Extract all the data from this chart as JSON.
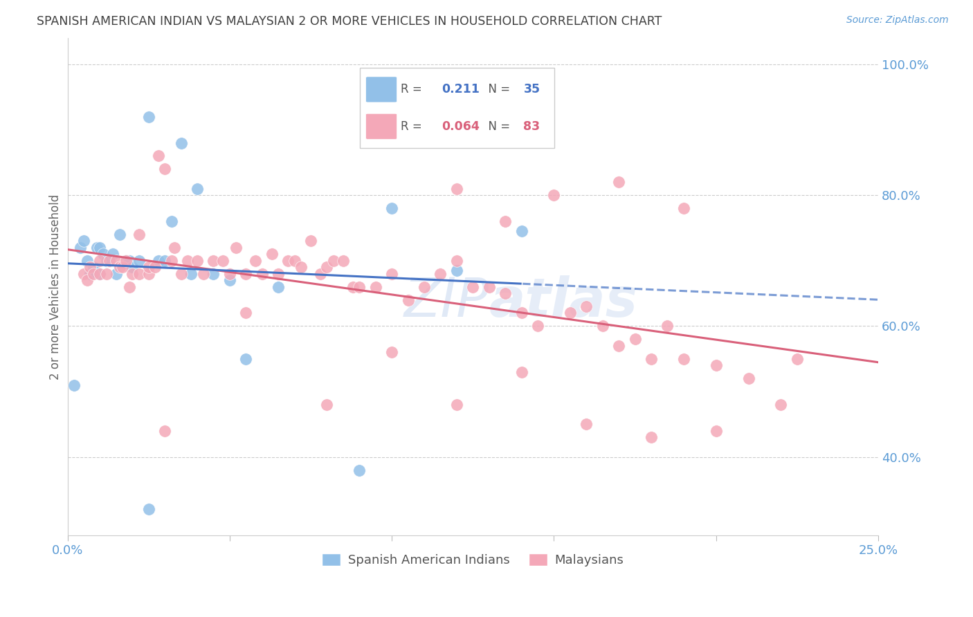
{
  "title": "SPANISH AMERICAN INDIAN VS MALAYSIAN 2 OR MORE VEHICLES IN HOUSEHOLD CORRELATION CHART",
  "source": "Source: ZipAtlas.com",
  "ylabel": "2 or more Vehicles in Household",
  "xlim": [
    0.0,
    0.25
  ],
  "ylim": [
    0.28,
    1.04
  ],
  "xticks": [
    0.0,
    0.05,
    0.1,
    0.15,
    0.2,
    0.25
  ],
  "xticklabels": [
    "0.0%",
    "",
    "",
    "",
    "",
    "25.0%"
  ],
  "yticks_right": [
    0.4,
    0.6,
    0.8,
    1.0
  ],
  "ytick_right_labels": [
    "40.0%",
    "60.0%",
    "80.0%",
    "100.0%"
  ],
  "blue_color": "#92C0E8",
  "pink_color": "#F4A8B8",
  "blue_line_color": "#4472C4",
  "pink_line_color": "#D9607A",
  "title_color": "#404040",
  "axis_color": "#5B9BD5",
  "watermark_color": "#C8D8F0",
  "blue_label": "Spanish American Indians",
  "pink_label": "Malaysians",
  "blue_R": "0.211",
  "blue_N": "35",
  "pink_R": "0.064",
  "pink_N": "83",
  "blue_x": [
    0.002,
    0.004,
    0.005,
    0.006,
    0.007,
    0.008,
    0.009,
    0.01,
    0.01,
    0.011,
    0.012,
    0.013,
    0.014,
    0.015,
    0.016,
    0.018,
    0.019,
    0.02,
    0.022,
    0.025,
    0.028,
    0.03,
    0.032,
    0.035,
    0.038,
    0.04,
    0.045,
    0.05,
    0.055,
    0.065,
    0.09,
    0.1,
    0.12,
    0.14,
    0.025
  ],
  "blue_y": [
    0.51,
    0.72,
    0.73,
    0.7,
    0.68,
    0.69,
    0.72,
    0.68,
    0.72,
    0.71,
    0.7,
    0.7,
    0.71,
    0.68,
    0.74,
    0.7,
    0.7,
    0.69,
    0.7,
    0.92,
    0.7,
    0.7,
    0.76,
    0.88,
    0.68,
    0.81,
    0.68,
    0.67,
    0.55,
    0.66,
    0.38,
    0.78,
    0.685,
    0.745,
    0.32
  ],
  "pink_x": [
    0.005,
    0.006,
    0.007,
    0.008,
    0.01,
    0.01,
    0.012,
    0.013,
    0.015,
    0.016,
    0.017,
    0.018,
    0.019,
    0.02,
    0.022,
    0.022,
    0.025,
    0.025,
    0.027,
    0.028,
    0.03,
    0.032,
    0.033,
    0.035,
    0.037,
    0.04,
    0.042,
    0.045,
    0.048,
    0.05,
    0.052,
    0.055,
    0.058,
    0.06,
    0.063,
    0.065,
    0.068,
    0.07,
    0.072,
    0.075,
    0.078,
    0.08,
    0.082,
    0.085,
    0.088,
    0.09,
    0.095,
    0.1,
    0.105,
    0.11,
    0.115,
    0.12,
    0.125,
    0.13,
    0.135,
    0.14,
    0.145,
    0.155,
    0.16,
    0.165,
    0.17,
    0.175,
    0.18,
    0.185,
    0.19,
    0.2,
    0.21,
    0.22,
    0.225,
    0.03,
    0.055,
    0.08,
    0.1,
    0.12,
    0.14,
    0.16,
    0.18,
    0.2,
    0.12,
    0.135,
    0.15,
    0.17,
    0.19
  ],
  "pink_y": [
    0.68,
    0.67,
    0.69,
    0.68,
    0.68,
    0.7,
    0.68,
    0.7,
    0.7,
    0.69,
    0.69,
    0.7,
    0.66,
    0.68,
    0.74,
    0.68,
    0.68,
    0.69,
    0.69,
    0.86,
    0.84,
    0.7,
    0.72,
    0.68,
    0.7,
    0.7,
    0.68,
    0.7,
    0.7,
    0.68,
    0.72,
    0.68,
    0.7,
    0.68,
    0.71,
    0.68,
    0.7,
    0.7,
    0.69,
    0.73,
    0.68,
    0.69,
    0.7,
    0.7,
    0.66,
    0.66,
    0.66,
    0.68,
    0.64,
    0.66,
    0.68,
    0.7,
    0.66,
    0.66,
    0.65,
    0.62,
    0.6,
    0.62,
    0.63,
    0.6,
    0.57,
    0.58,
    0.55,
    0.6,
    0.55,
    0.54,
    0.52,
    0.48,
    0.55,
    0.44,
    0.62,
    0.48,
    0.56,
    0.48,
    0.53,
    0.45,
    0.43,
    0.44,
    0.81,
    0.76,
    0.8,
    0.82,
    0.78
  ]
}
